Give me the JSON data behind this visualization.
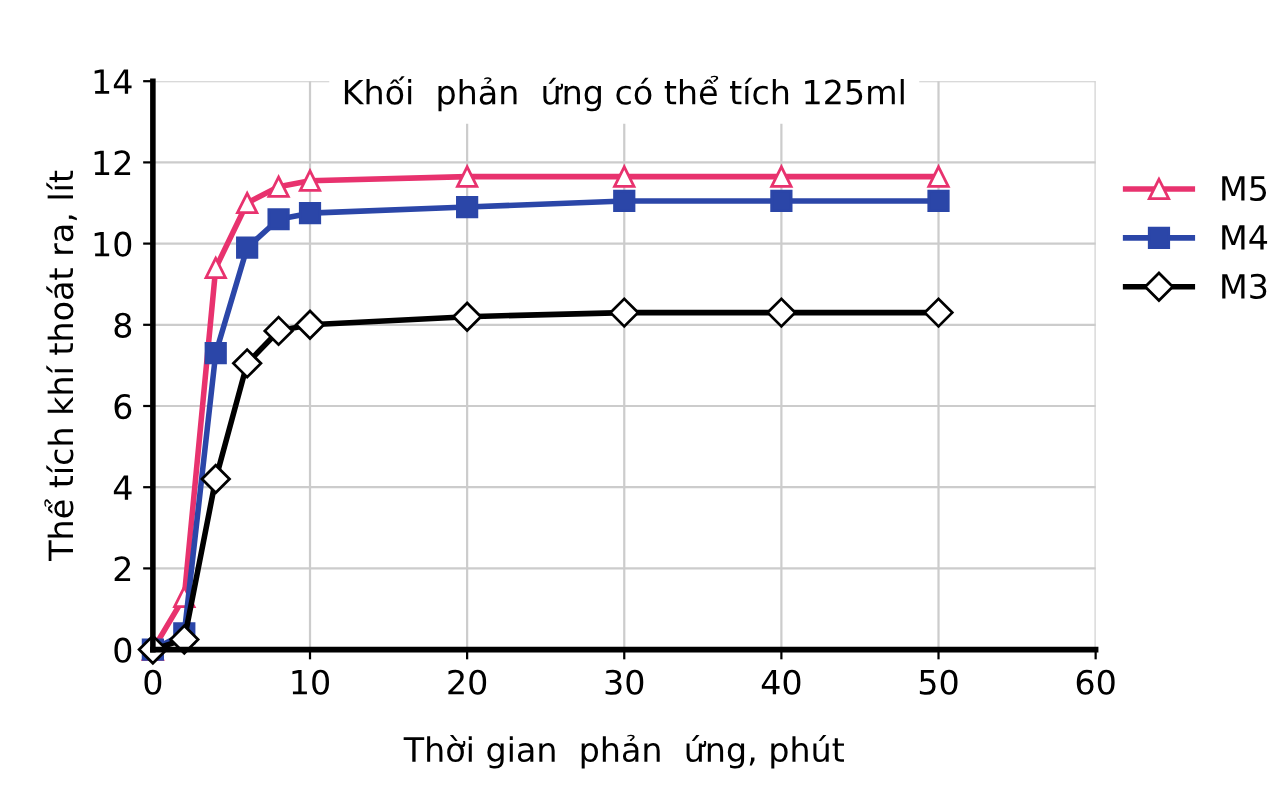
{
  "chart_data": {
    "type": "line",
    "title": "Khối  phản  ứng có thể tích 125ml",
    "xlabel": "Thời gian  phản  ứng, phút",
    "ylabel": "Thể tích khí thoát ra, lít",
    "x": [
      0,
      2,
      4,
      6,
      8,
      10,
      20,
      30,
      40,
      50
    ],
    "series": [
      {
        "name": "M5",
        "color": "#e8326e",
        "marker": "triangle",
        "values": [
          0,
          1.3,
          9.4,
          11.0,
          11.4,
          11.55,
          11.65,
          11.65,
          11.65,
          11.65
        ]
      },
      {
        "name": "M4",
        "color": "#2b46a8",
        "marker": "square",
        "values": [
          0,
          0.4,
          7.3,
          9.9,
          10.6,
          10.75,
          10.9,
          11.05,
          11.05,
          11.05
        ]
      },
      {
        "name": "M3",
        "color": "#000000",
        "marker": "diamond",
        "values": [
          0,
          0.25,
          4.2,
          7.05,
          7.85,
          8.0,
          8.2,
          8.3,
          8.3,
          8.3
        ]
      }
    ],
    "xlim": [
      0,
      60
    ],
    "xticks": [
      0,
      10,
      20,
      30,
      40,
      50,
      60
    ],
    "ylim": [
      0,
      14
    ],
    "yticks": [
      0,
      2,
      4,
      6,
      8,
      10,
      12,
      14
    ],
    "grid": true,
    "legend": "right",
    "line_style": "solid"
  }
}
